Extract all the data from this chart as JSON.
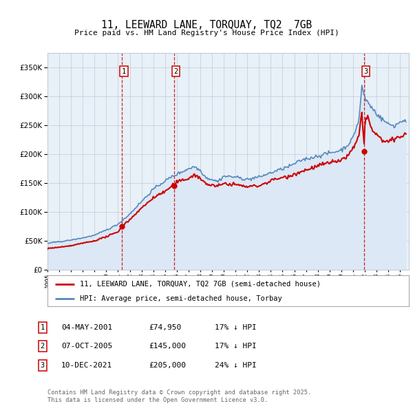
{
  "title": "11, LEEWARD LANE, TORQUAY, TQ2  7GB",
  "subtitle": "Price paid vs. HM Land Registry's House Price Index (HPI)",
  "background_color": "#f0f4f8",
  "plot_bg_color": "#e8f0f8",
  "grid_color": "#c0ccd8",
  "ylim": [
    0,
    375000
  ],
  "yticks": [
    0,
    50000,
    100000,
    150000,
    200000,
    250000,
    300000,
    350000
  ],
  "xlim_start": 1995.0,
  "xlim_end": 2025.75,
  "sale_dates": [
    2001.34,
    2005.76,
    2021.94
  ],
  "sale_prices": [
    74950,
    145000,
    205000
  ],
  "sale_labels": [
    "1",
    "2",
    "3"
  ],
  "sale_info": [
    {
      "num": "1",
      "date": "04-MAY-2001",
      "price": "£74,950",
      "pct": "17% ↓ HPI"
    },
    {
      "num": "2",
      "date": "07-OCT-2005",
      "price": "£145,000",
      "pct": "17% ↓ HPI"
    },
    {
      "num": "3",
      "date": "10-DEC-2021",
      "price": "£205,000",
      "pct": "24% ↓ HPI"
    }
  ],
  "legend_line1": "11, LEEWARD LANE, TORQUAY, TQ2 7GB (semi-detached house)",
  "legend_line2": "HPI: Average price, semi-detached house, Torbay",
  "footnote": "Contains HM Land Registry data © Crown copyright and database right 2025.\nThis data is licensed under the Open Government Licence v3.0.",
  "hpi_color": "#5588bb",
  "sale_line_color": "#cc0000",
  "vline_color": "#cc0000",
  "marker_color": "#cc0000",
  "hpi_fill_color": "#c8d8ea"
}
